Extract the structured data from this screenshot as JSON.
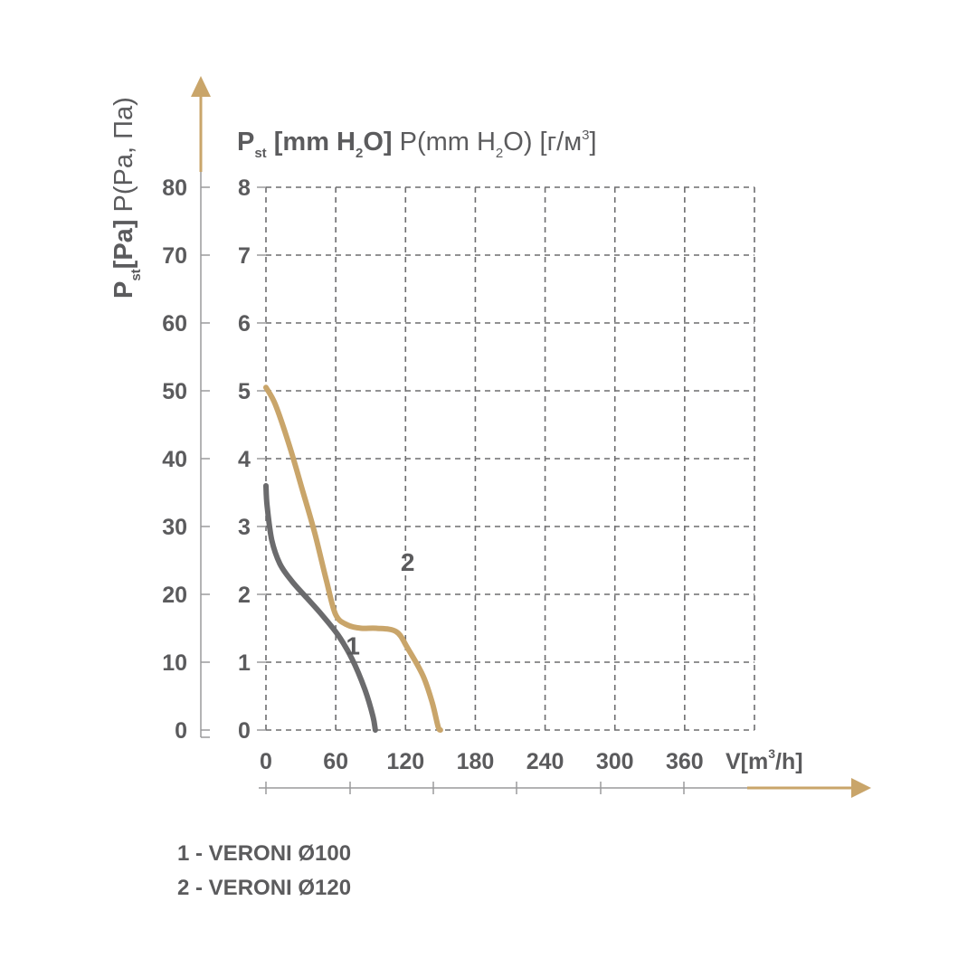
{
  "chart_data": {
    "type": "line",
    "y_axis_left": {
      "label_sub": "st",
      "label_bold": "[Pa]",
      "label_main": "P",
      "label_rest": " P(Pa, Па)",
      "ticks": [
        "0",
        "10",
        "20",
        "30",
        "40",
        "50",
        "60",
        "70",
        "80"
      ],
      "ylim": [
        0,
        80
      ]
    },
    "y_axis_inner": {
      "label_main": "P",
      "label_sub": "st",
      "label_bold_a": " [mm H",
      "label_bold_sub": "2",
      "label_bold_b": "O]",
      "label_rest_a": " P(mm H",
      "label_rest_sub": "2",
      "label_rest_b": "O) [г/м",
      "label_rest_sup": "3",
      "label_rest_c": "]",
      "ticks": [
        "0",
        "1",
        "2",
        "3",
        "4",
        "5",
        "6",
        "7",
        "8"
      ],
      "ylim": [
        0,
        8
      ]
    },
    "x_axis": {
      "label_a": "V[m",
      "label_sup": "3",
      "label_b": "/h]",
      "ticks": [
        "0",
        "60",
        "120",
        "180",
        "240",
        "300",
        "360"
      ],
      "xlim": [
        0,
        420
      ]
    },
    "grid": true,
    "series": [
      {
        "name": "1",
        "color": "#6b6b6d",
        "label_x": 75,
        "label_y": 12.5,
        "points": [
          [
            0,
            36
          ],
          [
            1,
            33
          ],
          [
            5,
            28
          ],
          [
            12,
            24.5
          ],
          [
            22,
            22
          ],
          [
            35,
            19.5
          ],
          [
            48,
            17
          ],
          [
            62,
            14
          ],
          [
            74,
            10.5
          ],
          [
            85,
            6
          ],
          [
            92,
            2
          ],
          [
            94,
            0
          ]
        ]
      },
      {
        "name": "2",
        "color": "#c9a56a",
        "label_x": 122,
        "label_y": 24.8,
        "points": [
          [
            0,
            50.5
          ],
          [
            8,
            48
          ],
          [
            20,
            42
          ],
          [
            32,
            35
          ],
          [
            42,
            29
          ],
          [
            52,
            22
          ],
          [
            60,
            17
          ],
          [
            70,
            15.5
          ],
          [
            82,
            15
          ],
          [
            95,
            15
          ],
          [
            112,
            14.5
          ],
          [
            122,
            12
          ],
          [
            135,
            8
          ],
          [
            143,
            4
          ],
          [
            148,
            0.5
          ],
          [
            150,
            0
          ]
        ]
      }
    ],
    "legend": [
      "1 - VERONI Ø100",
      "2 - VERONI Ø120"
    ]
  }
}
